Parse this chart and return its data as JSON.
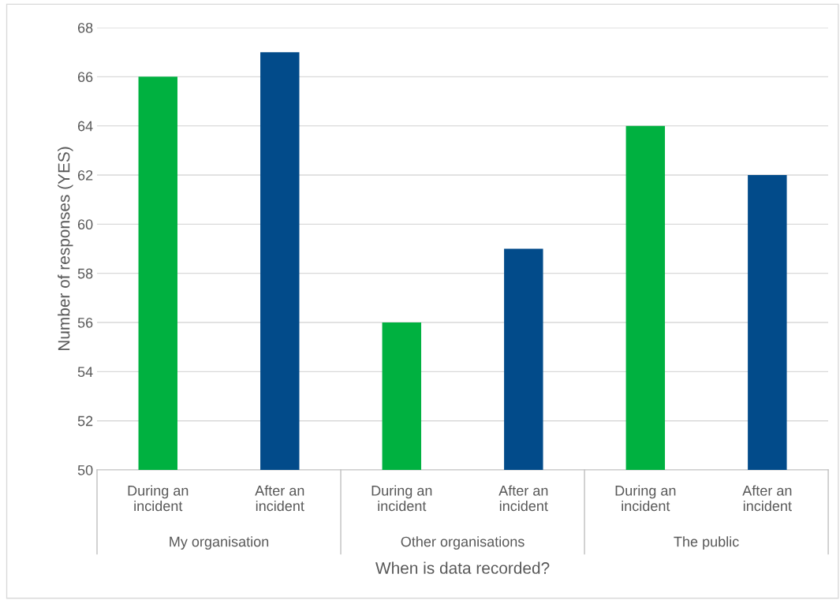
{
  "chart_data": {
    "type": "bar",
    "xlabel": "When is data recorded?",
    "ylabel": "Number of responses (YES)",
    "categories": [
      "During an\nincident",
      "After an\nincident",
      "During an\nincident",
      "After an\nincident",
      "During an\nincident",
      "After an\nincident"
    ],
    "values": [
      66,
      67,
      56,
      59,
      64,
      62
    ],
    "colors": [
      "#00b140",
      "#024b8a",
      "#00b140",
      "#024b8a",
      "#00b140",
      "#024b8a"
    ],
    "annotations": [
      "My organisation",
      "Other organisations",
      "The public"
    ],
    "ylim": [
      50,
      68
    ],
    "yticks": [
      50,
      52,
      54,
      56,
      58,
      60,
      62,
      64,
      66,
      68
    ],
    "grid": "y"
  }
}
